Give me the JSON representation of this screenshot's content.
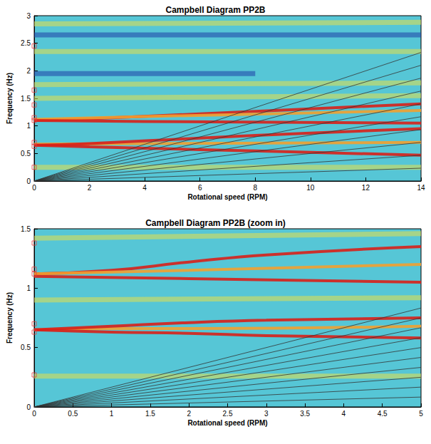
{
  "chart_data": [
    {
      "type": "line",
      "title": "Campbell Diagram PP2B",
      "x_label": "Rotational speed (RPM)",
      "y_label": "Frequency (Hz)",
      "xlim": [
        0,
        14
      ],
      "xticks": [
        0,
        2,
        4,
        6,
        8,
        10,
        12,
        14
      ],
      "ylim": [
        0,
        3
      ],
      "yticks": [
        0,
        0.5,
        1,
        1.5,
        2,
        2.5,
        3
      ],
      "grid": false,
      "series": [
        {
          "type": "line",
          "color": "#e8e04a",
          "line_style": "band",
          "x": [
            0,
            14
          ],
          "values": [
            0.25,
            0.25
          ]
        },
        {
          "type": "line",
          "color": "#e8e04a",
          "line_style": "band",
          "x": [
            0,
            14
          ],
          "values": [
            1.5,
            1.55
          ]
        },
        {
          "type": "line",
          "color": "#e8e04a",
          "line_style": "band",
          "x": [
            0,
            14
          ],
          "values": [
            1.75,
            1.78
          ]
        },
        {
          "type": "line",
          "color": "#e8e04a",
          "line_style": "band",
          "x": [
            0,
            14
          ],
          "values": [
            2.35,
            2.35
          ]
        },
        {
          "type": "line",
          "color": "#e8e04a",
          "line_style": "band",
          "x": [
            0,
            14
          ],
          "values": [
            2.85,
            2.88
          ]
        },
        {
          "type": "line",
          "color": "#1f3fa8",
          "line_style": "band",
          "x": [
            0,
            14
          ],
          "values": [
            2.65,
            2.65
          ]
        },
        {
          "type": "line",
          "color": "#1f3fa8",
          "line_style": "band",
          "x": [
            0,
            8
          ],
          "values": [
            1.95,
            1.95
          ]
        },
        {
          "type": "line",
          "color": "#f2a030",
          "line_style": "thick",
          "x": [
            0,
            14
          ],
          "values": [
            0.67,
            0.7
          ]
        },
        {
          "type": "line",
          "color": "#d8201a",
          "line_style": "thick",
          "x": [
            0,
            2,
            6,
            10,
            14
          ],
          "values": [
            0.65,
            0.68,
            0.78,
            0.87,
            0.95
          ]
        },
        {
          "type": "line",
          "color": "#d8201a",
          "line_style": "thick",
          "x": [
            0,
            2,
            6,
            10,
            14
          ],
          "values": [
            0.65,
            0.62,
            0.57,
            0.52,
            0.47
          ]
        },
        {
          "type": "line",
          "color": "#d8201a",
          "line_style": "thick",
          "x": [
            0,
            2,
            6,
            10,
            14
          ],
          "values": [
            1.1,
            1.13,
            1.22,
            1.31,
            1.4
          ]
        },
        {
          "type": "line",
          "color": "#f2a030",
          "line_style": "thick",
          "x": [
            0,
            4,
            14
          ],
          "values": [
            1.12,
            1.17,
            1.28
          ]
        },
        {
          "type": "line",
          "color": "#d8201a",
          "line_style": "thick",
          "x": [
            0,
            4,
            14
          ],
          "values": [
            1.1,
            1.08,
            1.05
          ]
        },
        {
          "type": "line",
          "color": "#333333",
          "line_style": "thin",
          "x": [
            0,
            14
          ],
          "values": [
            0,
            0.233
          ]
        },
        {
          "type": "line",
          "color": "#333333",
          "line_style": "thin",
          "x": [
            0,
            14
          ],
          "values": [
            0,
            0.467
          ]
        },
        {
          "type": "line",
          "color": "#333333",
          "line_style": "thin",
          "x": [
            0,
            14
          ],
          "values": [
            0,
            0.7
          ]
        },
        {
          "type": "line",
          "color": "#333333",
          "line_style": "thin",
          "x": [
            0,
            14
          ],
          "values": [
            0,
            0.933
          ]
        },
        {
          "type": "line",
          "color": "#333333",
          "line_style": "thin",
          "x": [
            0,
            14
          ],
          "values": [
            0,
            1.167
          ]
        },
        {
          "type": "line",
          "color": "#333333",
          "line_style": "thin",
          "x": [
            0,
            14
          ],
          "values": [
            0,
            1.4
          ]
        },
        {
          "type": "line",
          "color": "#333333",
          "line_style": "thin",
          "x": [
            0,
            14
          ],
          "values": [
            0,
            1.633
          ]
        },
        {
          "type": "line",
          "color": "#333333",
          "line_style": "thin",
          "x": [
            0,
            14
          ],
          "values": [
            0,
            1.867
          ]
        },
        {
          "type": "line",
          "color": "#333333",
          "line_style": "thin",
          "x": [
            0,
            14
          ],
          "values": [
            0,
            2.1
          ]
        },
        {
          "type": "line",
          "color": "#333333",
          "line_style": "thin",
          "x": [
            0,
            14
          ],
          "values": [
            0,
            2.333
          ]
        },
        {
          "type": "scatter",
          "color": "#e04040",
          "marker": "square",
          "x": [
            0,
            0,
            0,
            0,
            0,
            0,
            0,
            0
          ],
          "values": [
            0.25,
            0.63,
            0.7,
            1.1,
            1.15,
            1.38,
            1.65,
            2.45
          ]
        }
      ]
    },
    {
      "type": "line",
      "title": "Campbell Diagram PP2B (zoom in)",
      "x_label": "Rotational speed (RPM)",
      "y_label": "Frequency (Hz)",
      "xlim": [
        0,
        5
      ],
      "xticks": [
        0,
        0.5,
        1,
        1.5,
        2,
        2.5,
        3,
        3.5,
        4,
        4.5,
        5
      ],
      "ylim": [
        0,
        1.5
      ],
      "yticks": [
        0,
        0.5,
        1,
        1.5
      ],
      "grid": false,
      "series": [
        {
          "type": "line",
          "color": "#e8e04a",
          "line_style": "band",
          "x": [
            0,
            5
          ],
          "values": [
            0.26,
            0.26
          ]
        },
        {
          "type": "line",
          "color": "#e8e04a",
          "line_style": "band",
          "x": [
            0,
            5
          ],
          "values": [
            1.42,
            1.46
          ]
        },
        {
          "type": "line",
          "color": "#e8e04a",
          "line_style": "band",
          "x": [
            0,
            5
          ],
          "values": [
            0.9,
            0.92
          ]
        },
        {
          "type": "line",
          "color": "#f2a030",
          "line_style": "thick",
          "x": [
            0,
            1,
            2,
            5
          ],
          "values": [
            0.65,
            0.66,
            0.66,
            0.68
          ]
        },
        {
          "type": "line",
          "color": "#d8201a",
          "line_style": "thick",
          "x": [
            0,
            1,
            2,
            3,
            5
          ],
          "values": [
            0.65,
            0.68,
            0.71,
            0.73,
            0.75
          ]
        },
        {
          "type": "line",
          "color": "#d8201a",
          "line_style": "thick",
          "x": [
            0,
            1,
            2,
            3,
            5
          ],
          "values": [
            0.65,
            0.63,
            0.62,
            0.6,
            0.58
          ]
        },
        {
          "type": "line",
          "color": "#d8201a",
          "line_style": "thick",
          "x": [
            0,
            1,
            2,
            3,
            5
          ],
          "values": [
            1.12,
            1.15,
            1.22,
            1.28,
            1.35
          ]
        },
        {
          "type": "line",
          "color": "#f2a030",
          "line_style": "thick",
          "x": [
            0,
            2,
            5
          ],
          "values": [
            1.12,
            1.15,
            1.2
          ]
        },
        {
          "type": "line",
          "color": "#d8201a",
          "line_style": "thick",
          "x": [
            0,
            2,
            5
          ],
          "values": [
            1.1,
            1.08,
            1.05
          ]
        },
        {
          "type": "line",
          "color": "#333333",
          "line_style": "thin",
          "x": [
            0,
            5
          ],
          "values": [
            0,
            0.083
          ]
        },
        {
          "type": "line",
          "color": "#333333",
          "line_style": "thin",
          "x": [
            0,
            5
          ],
          "values": [
            0,
            0.167
          ]
        },
        {
          "type": "line",
          "color": "#333333",
          "line_style": "thin",
          "x": [
            0,
            5
          ],
          "values": [
            0,
            0.25
          ]
        },
        {
          "type": "line",
          "color": "#333333",
          "line_style": "thin",
          "x": [
            0,
            5
          ],
          "values": [
            0,
            0.333
          ]
        },
        {
          "type": "line",
          "color": "#333333",
          "line_style": "thin",
          "x": [
            0,
            5
          ],
          "values": [
            0,
            0.417
          ]
        },
        {
          "type": "line",
          "color": "#333333",
          "line_style": "thin",
          "x": [
            0,
            5
          ],
          "values": [
            0,
            0.5
          ]
        },
        {
          "type": "line",
          "color": "#333333",
          "line_style": "thin",
          "x": [
            0,
            5
          ],
          "values": [
            0,
            0.583
          ]
        },
        {
          "type": "line",
          "color": "#333333",
          "line_style": "thin",
          "x": [
            0,
            5
          ],
          "values": [
            0,
            0.667
          ]
        },
        {
          "type": "line",
          "color": "#333333",
          "line_style": "thin",
          "x": [
            0,
            5
          ],
          "values": [
            0,
            0.75
          ]
        },
        {
          "type": "line",
          "color": "#333333",
          "line_style": "thin",
          "x": [
            0,
            5
          ],
          "values": [
            0,
            0.833
          ]
        },
        {
          "type": "scatter",
          "color": "#e04040",
          "marker": "square",
          "x": [
            0,
            0,
            0,
            0,
            0,
            0
          ],
          "values": [
            0.27,
            0.63,
            0.7,
            1.12,
            1.16,
            1.38
          ]
        }
      ]
    }
  ]
}
